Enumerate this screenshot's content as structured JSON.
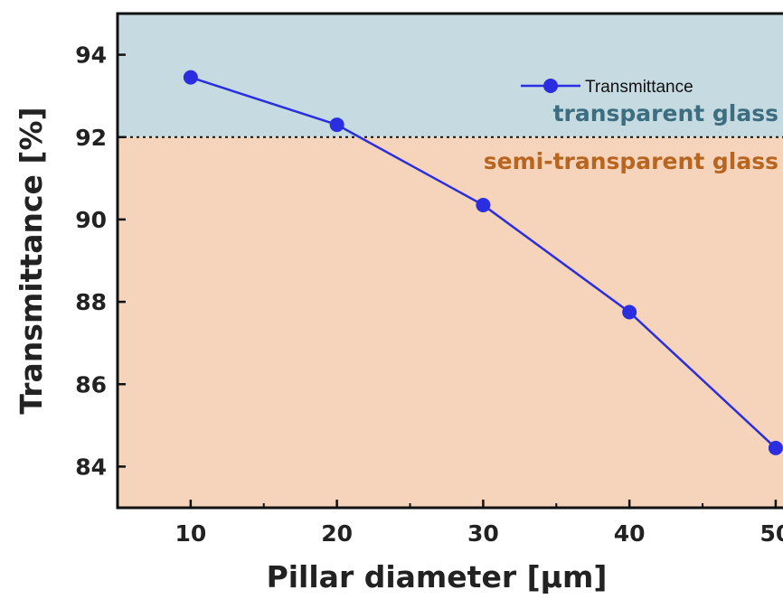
{
  "chart_data": {
    "type": "line",
    "xlabel": "Pillar diameter [μm]",
    "ylabel": "Transmittance [%]",
    "xlim": [
      5,
      50.5
    ],
    "ylim": [
      83,
      95
    ],
    "x_ticks": [
      10,
      20,
      30,
      40,
      50
    ],
    "y_ticks": [
      84,
      86,
      88,
      90,
      92,
      94
    ],
    "threshold": 92,
    "series": [
      {
        "name": "Transmittance",
        "color": "#2a2ee0",
        "x": [
          10,
          20,
          30,
          40,
          50
        ],
        "y": [
          93.45,
          92.3,
          90.35,
          87.75,
          84.45
        ]
      }
    ],
    "regions": {
      "above_label": "transparent glass",
      "below_label": "semi-transparent glass",
      "above_color": "#c5dbe1",
      "below_color": "#f6d3bb",
      "above_text_color": "#3d6d80",
      "below_text_color": "#b8661f"
    },
    "legend_position": "top-right",
    "grid": false
  }
}
